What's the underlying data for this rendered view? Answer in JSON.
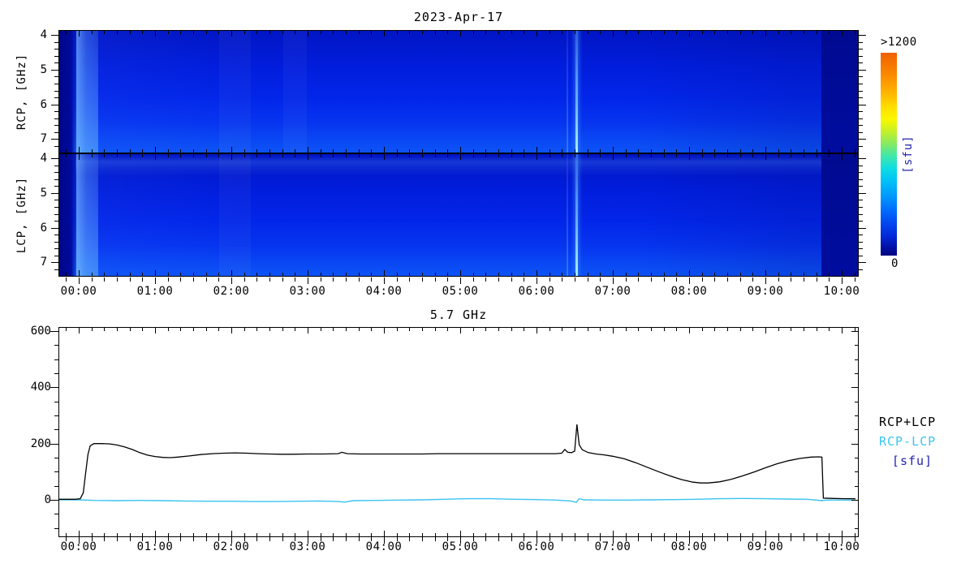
{
  "figure_title": "2023-Apr-17",
  "spectrograms": {
    "panels": [
      {
        "id": "rcp",
        "ylabel": "RCP, [GHz]",
        "ytick_labels": [
          "4",
          "5",
          "6",
          "7"
        ]
      },
      {
        "id": "lcp",
        "ylabel": "LCP, [GHz]",
        "ytick_labels": [
          "4",
          "5",
          "6",
          "7"
        ]
      }
    ],
    "xtick_labels": [
      "00:00",
      "01:00",
      "02:00",
      "03:00",
      "04:00",
      "05:00",
      "06:00",
      "07:00",
      "08:00",
      "09:00",
      "10:00"
    ]
  },
  "colorbar": {
    "max_label": ">1200",
    "min_label": "0",
    "unit_label": "[sfu]",
    "unit_color": "#2323ae",
    "palette_top_to_bottom": [
      "#f06000",
      "#fb8500",
      "#ffb600",
      "#ffe400",
      "#f8f800",
      "#c2f02a",
      "#84ea62",
      "#3fe7ac",
      "#0ddde2",
      "#00c2f6",
      "#009cfc",
      "#0070ff",
      "#0047f0",
      "#0026d4",
      "#0010a4",
      "#000480"
    ]
  },
  "timeseries": {
    "title": "5.7 GHz",
    "ytick_labels": [
      "0",
      "200",
      "400",
      "600"
    ],
    "xtick_labels": [
      "00:00",
      "01:00",
      "02:00",
      "03:00",
      "04:00",
      "05:00",
      "06:00",
      "07:00",
      "08:00",
      "09:00",
      "10:00"
    ],
    "legend": [
      {
        "label": "RCP+LCP",
        "color": "#000000"
      },
      {
        "label": "RCP-LCP",
        "color": "#3ac4ef"
      },
      {
        "label": "[sfu]",
        "color": "#2323ae"
      }
    ]
  },
  "chart_data": [
    {
      "type": "heatmap",
      "title": "2023-Apr-17",
      "panels": [
        {
          "name": "RCP",
          "ylabel": "RCP, [GHz]"
        },
        {
          "name": "LCP",
          "ylabel": "LCP, [GHz]"
        }
      ],
      "x_axis": {
        "tick_labels": [
          "00:00",
          "01:00",
          "02:00",
          "03:00",
          "04:00",
          "05:00",
          "06:00",
          "07:00",
          "08:00",
          "09:00",
          "10:00"
        ],
        "hours_range": [
          -0.27,
          10.22
        ]
      },
      "y_axis": {
        "ticks_ghz": [
          4,
          5,
          6,
          7
        ],
        "range_ghz": [
          3.85,
          7.42
        ],
        "direction": "4 GHz at top, 7 GHz at bottom"
      },
      "color_scale": {
        "unit": "sfu",
        "min": 0,
        "min_label": "0",
        "max_label": ">1200",
        "palette": "rainbow: dark navy (0) through blue, cyan, green, yellow to orange (>1200)"
      },
      "features": [
        {
          "time": "before 00:00",
          "description": "no data - dark navy vertical band at left edge"
        },
        {
          "time": "00:05-00:35",
          "description": "slightly brighter blue strip at observation start (~200 sfu)"
        },
        {
          "time": "06:25",
          "description": "faint narrow vertical enhancement (precursor)"
        },
        {
          "time": "06:32",
          "description": "bright narrow cyan vertical burst line spanning 4-7.4 GHz in both RCP and LCP, brighter toward 7 GHz"
        },
        {
          "time": "after 09:45",
          "description": "no data - dark navy band to right edge"
        },
        {
          "time": "all day",
          "description": "quiet-Sun background blue, gradually lighter (higher flux) toward 7 GHz bottom of each panel"
        }
      ]
    },
    {
      "type": "line",
      "title": "5.7 GHz",
      "xlabel": "",
      "ylabel": "",
      "unit": "sfu",
      "ylim": [
        -133,
        606
      ],
      "yticks": [
        0,
        200,
        400,
        600
      ],
      "x_hours_range": [
        -0.27,
        10.22
      ],
      "series": [
        {
          "name": "RCP+LCP",
          "color": "#000000",
          "points": [
            [
              -0.26,
              2
            ],
            [
              -0.05,
              2
            ],
            [
              0.02,
              4
            ],
            [
              0.06,
              25
            ],
            [
              0.09,
              95
            ],
            [
              0.12,
              160
            ],
            [
              0.15,
              192
            ],
            [
              0.2,
              200
            ],
            [
              0.3,
              200
            ],
            [
              0.4,
              199
            ],
            [
              0.5,
              195
            ],
            [
              0.6,
              188
            ],
            [
              0.7,
              179
            ],
            [
              0.8,
              168
            ],
            [
              0.9,
              159
            ],
            [
              1.0,
              154
            ],
            [
              1.1,
              151
            ],
            [
              1.2,
              150
            ],
            [
              1.3,
              152
            ],
            [
              1.45,
              156
            ],
            [
              1.6,
              161
            ],
            [
              1.75,
              164
            ],
            [
              1.9,
              166
            ],
            [
              2.05,
              167
            ],
            [
              2.2,
              166
            ],
            [
              2.35,
              164
            ],
            [
              2.5,
              163
            ],
            [
              2.65,
              162
            ],
            [
              2.8,
              162
            ],
            [
              3.0,
              163
            ],
            [
              3.2,
              163
            ],
            [
              3.4,
              164
            ],
            [
              3.45,
              169
            ],
            [
              3.52,
              164
            ],
            [
              3.7,
              163
            ],
            [
              3.9,
              163
            ],
            [
              4.1,
              163
            ],
            [
              4.3,
              163
            ],
            [
              4.5,
              163
            ],
            [
              4.7,
              164
            ],
            [
              4.9,
              164
            ],
            [
              5.1,
              164
            ],
            [
              5.3,
              164
            ],
            [
              5.5,
              164
            ],
            [
              5.7,
              164
            ],
            [
              5.9,
              164
            ],
            [
              6.1,
              164
            ],
            [
              6.25,
              164
            ],
            [
              6.33,
              166
            ],
            [
              6.37,
              179
            ],
            [
              6.41,
              169
            ],
            [
              6.46,
              168
            ],
            [
              6.5,
              173
            ],
            [
              6.53,
              268
            ],
            [
              6.56,
              196
            ],
            [
              6.6,
              178
            ],
            [
              6.68,
              168
            ],
            [
              6.78,
              163
            ],
            [
              6.88,
              160
            ],
            [
              7.0,
              155
            ],
            [
              7.15,
              146
            ],
            [
              7.3,
              132
            ],
            [
              7.45,
              116
            ],
            [
              7.6,
              100
            ],
            [
              7.75,
              85
            ],
            [
              7.9,
              72
            ],
            [
              8.05,
              63
            ],
            [
              8.15,
              60
            ],
            [
              8.25,
              60
            ],
            [
              8.4,
              64
            ],
            [
              8.55,
              73
            ],
            [
              8.7,
              85
            ],
            [
              8.85,
              99
            ],
            [
              9.0,
              114
            ],
            [
              9.15,
              128
            ],
            [
              9.3,
              139
            ],
            [
              9.45,
              147
            ],
            [
              9.6,
              152
            ],
            [
              9.7,
              153
            ],
            [
              9.74,
              152
            ],
            [
              9.76,
              6
            ],
            [
              9.9,
              5
            ],
            [
              10.05,
              4
            ],
            [
              10.18,
              4
            ]
          ]
        },
        {
          "name": "RCP-LCP",
          "color": "#3ac4ef",
          "points": [
            [
              -0.26,
              0
            ],
            [
              0.0,
              0
            ],
            [
              0.2,
              -2
            ],
            [
              0.5,
              -3
            ],
            [
              0.8,
              -2
            ],
            [
              1.1,
              -3
            ],
            [
              1.4,
              -4
            ],
            [
              1.7,
              -5
            ],
            [
              2.0,
              -5
            ],
            [
              2.3,
              -6
            ],
            [
              2.6,
              -6
            ],
            [
              2.9,
              -5
            ],
            [
              3.15,
              -4
            ],
            [
              3.4,
              -6
            ],
            [
              3.48,
              -8
            ],
            [
              3.6,
              -3
            ],
            [
              3.9,
              -2
            ],
            [
              4.2,
              -1
            ],
            [
              4.5,
              0
            ],
            [
              4.8,
              2
            ],
            [
              5.1,
              4
            ],
            [
              5.4,
              4
            ],
            [
              5.7,
              2
            ],
            [
              6.0,
              1
            ],
            [
              6.25,
              -1
            ],
            [
              6.45,
              -4
            ],
            [
              6.52,
              -9
            ],
            [
              6.56,
              4
            ],
            [
              6.62,
              0
            ],
            [
              6.9,
              -1
            ],
            [
              7.2,
              -1
            ],
            [
              7.5,
              0
            ],
            [
              7.8,
              1
            ],
            [
              8.1,
              2
            ],
            [
              8.4,
              4
            ],
            [
              8.7,
              5
            ],
            [
              9.0,
              4
            ],
            [
              9.3,
              3
            ],
            [
              9.55,
              2
            ],
            [
              9.74,
              -3
            ],
            [
              9.8,
              -1
            ],
            [
              10.0,
              -1
            ],
            [
              10.18,
              -1
            ]
          ]
        }
      ],
      "legend_position": "right of plot",
      "grid": false
    }
  ]
}
